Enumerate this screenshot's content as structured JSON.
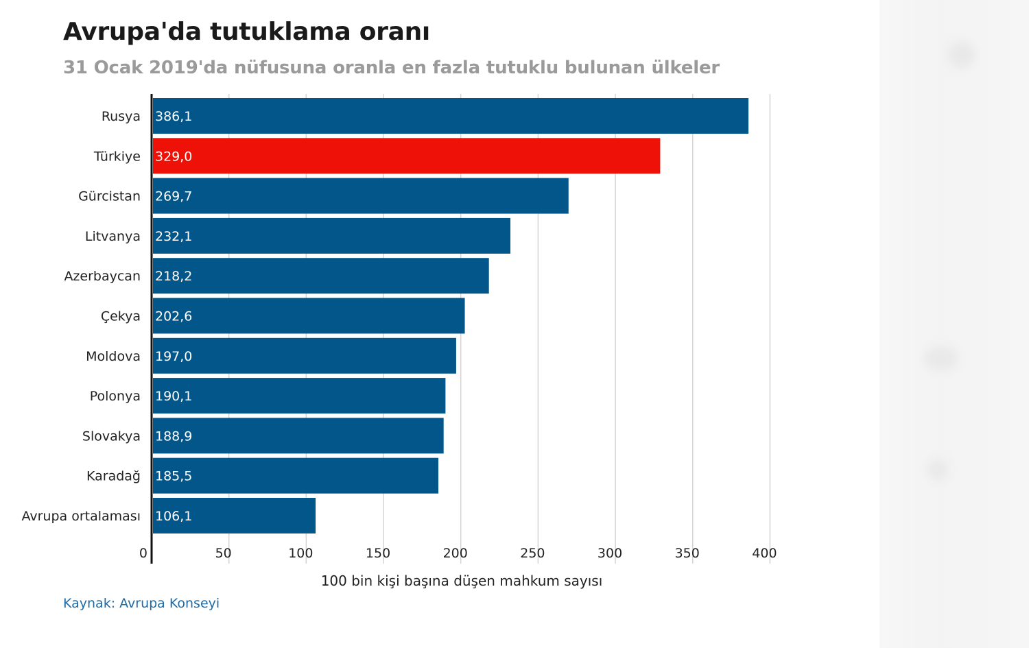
{
  "chart_data": {
    "type": "bar",
    "orientation": "horizontal",
    "title": "Avrupa'da tutuklama oranı",
    "subtitle": "31 Ocak 2019'da nüfusuna oranla en fazla tutuklu bulunan ülkeler",
    "xlabel": "100 bin kişi başına düşen mahkum sayısı",
    "ylabel": "",
    "xlim": [
      0,
      400
    ],
    "x_ticks": [
      0,
      50,
      100,
      150,
      200,
      250,
      300,
      350,
      400
    ],
    "grid": true,
    "categories": [
      "Rusya",
      "Türkiye",
      "Gürcistan",
      "Litvanya",
      "Azerbaycan",
      "Çekya",
      "Moldova",
      "Polonya",
      "Slovakya",
      "Karadağ",
      "Avrupa ortalaması"
    ],
    "values": [
      386.1,
      329.0,
      269.7,
      232.1,
      218.2,
      202.6,
      197.0,
      190.1,
      188.9,
      185.5,
      106.1
    ],
    "value_labels": [
      "386,1",
      "329,0",
      "269,7",
      "232,1",
      "218,2",
      "202,6",
      "197,0",
      "190,1",
      "188,9",
      "185,5",
      "106,1"
    ],
    "highlight_category": "Türkiye",
    "colors": {
      "bar": "#03568a",
      "highlight": "#ee1108",
      "grid": "#d4d4d4",
      "axis": "#111111"
    }
  },
  "source": "Kaynak: Avrupa Konseyi"
}
